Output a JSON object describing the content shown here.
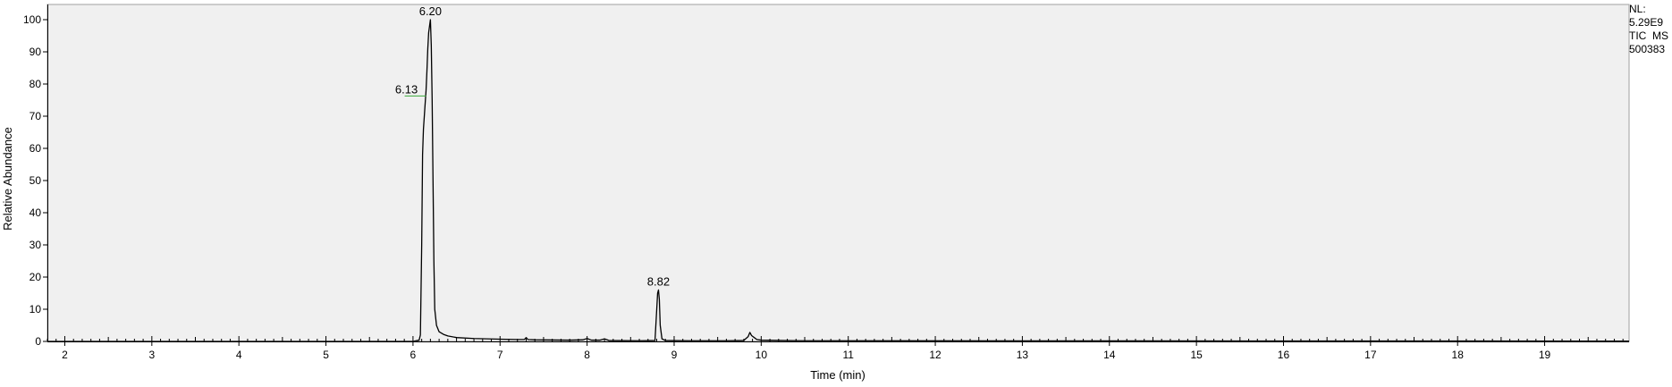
{
  "info_panel": {
    "nl_label": "NL:",
    "nl_value": "5.29E9",
    "trace_label": "TIC  MS",
    "file_id": "500383"
  },
  "chart_data": {
    "type": "line",
    "title": "",
    "xlabel": "Time (min)",
    "ylabel": "Relative Abundance",
    "xlim": [
      1.8,
      19.97
    ],
    "ylim": [
      0,
      100
    ],
    "xticks": [
      2,
      3,
      4,
      5,
      6,
      7,
      8,
      9,
      10,
      11,
      12,
      13,
      14,
      15,
      16,
      17,
      18,
      19
    ],
    "yticks": [
      0,
      10,
      20,
      30,
      40,
      50,
      60,
      70,
      80,
      90,
      100
    ],
    "grid": false,
    "series": [
      {
        "color": "#000000",
        "x": [
          1.8,
          6.0,
          6.07,
          6.085,
          6.1,
          6.11,
          6.12,
          6.13,
          6.14,
          6.15,
          6.16,
          6.17,
          6.18,
          6.19,
          6.2,
          6.21,
          6.22,
          6.23,
          6.24,
          6.25,
          6.27,
          6.3,
          6.35,
          6.4,
          6.5,
          6.7,
          7.0,
          7.2,
          7.28,
          7.3,
          7.32,
          7.4,
          7.8,
          7.95,
          8.0,
          8.05,
          8.15,
          8.2,
          8.25,
          8.6,
          8.78,
          8.8,
          8.81,
          8.82,
          8.83,
          8.84,
          8.86,
          8.9,
          9.2,
          9.6,
          9.8,
          9.85,
          9.87,
          9.89,
          9.92,
          9.95,
          10.0,
          10.5,
          19.97
        ],
        "y": [
          0,
          0,
          0.4,
          2,
          30,
          58,
          66,
          70,
          74,
          78,
          84,
          91,
          96,
          98,
          100,
          92,
          75,
          50,
          25,
          10,
          5,
          3,
          2.2,
          1.7,
          1.2,
          0.9,
          0.7,
          0.6,
          0.6,
          1.2,
          0.6,
          0.5,
          0.4,
          0.5,
          0.9,
          0.4,
          0.4,
          0.8,
          0.3,
          0.2,
          0.3,
          10,
          15,
          16,
          13,
          5,
          0.8,
          0.3,
          0.2,
          0.2,
          0.3,
          1.5,
          2.8,
          1.8,
          1.2,
          0.6,
          0.4,
          0.2,
          0.1
        ]
      }
    ],
    "annotations": [
      {
        "x": 6.2,
        "y": 100,
        "text": "6.20"
      },
      {
        "x": 6.13,
        "y": 76,
        "text": "6.13",
        "marker_color": "#3aaa3a"
      },
      {
        "x": 8.82,
        "y": 16,
        "text": "8.82"
      }
    ]
  }
}
